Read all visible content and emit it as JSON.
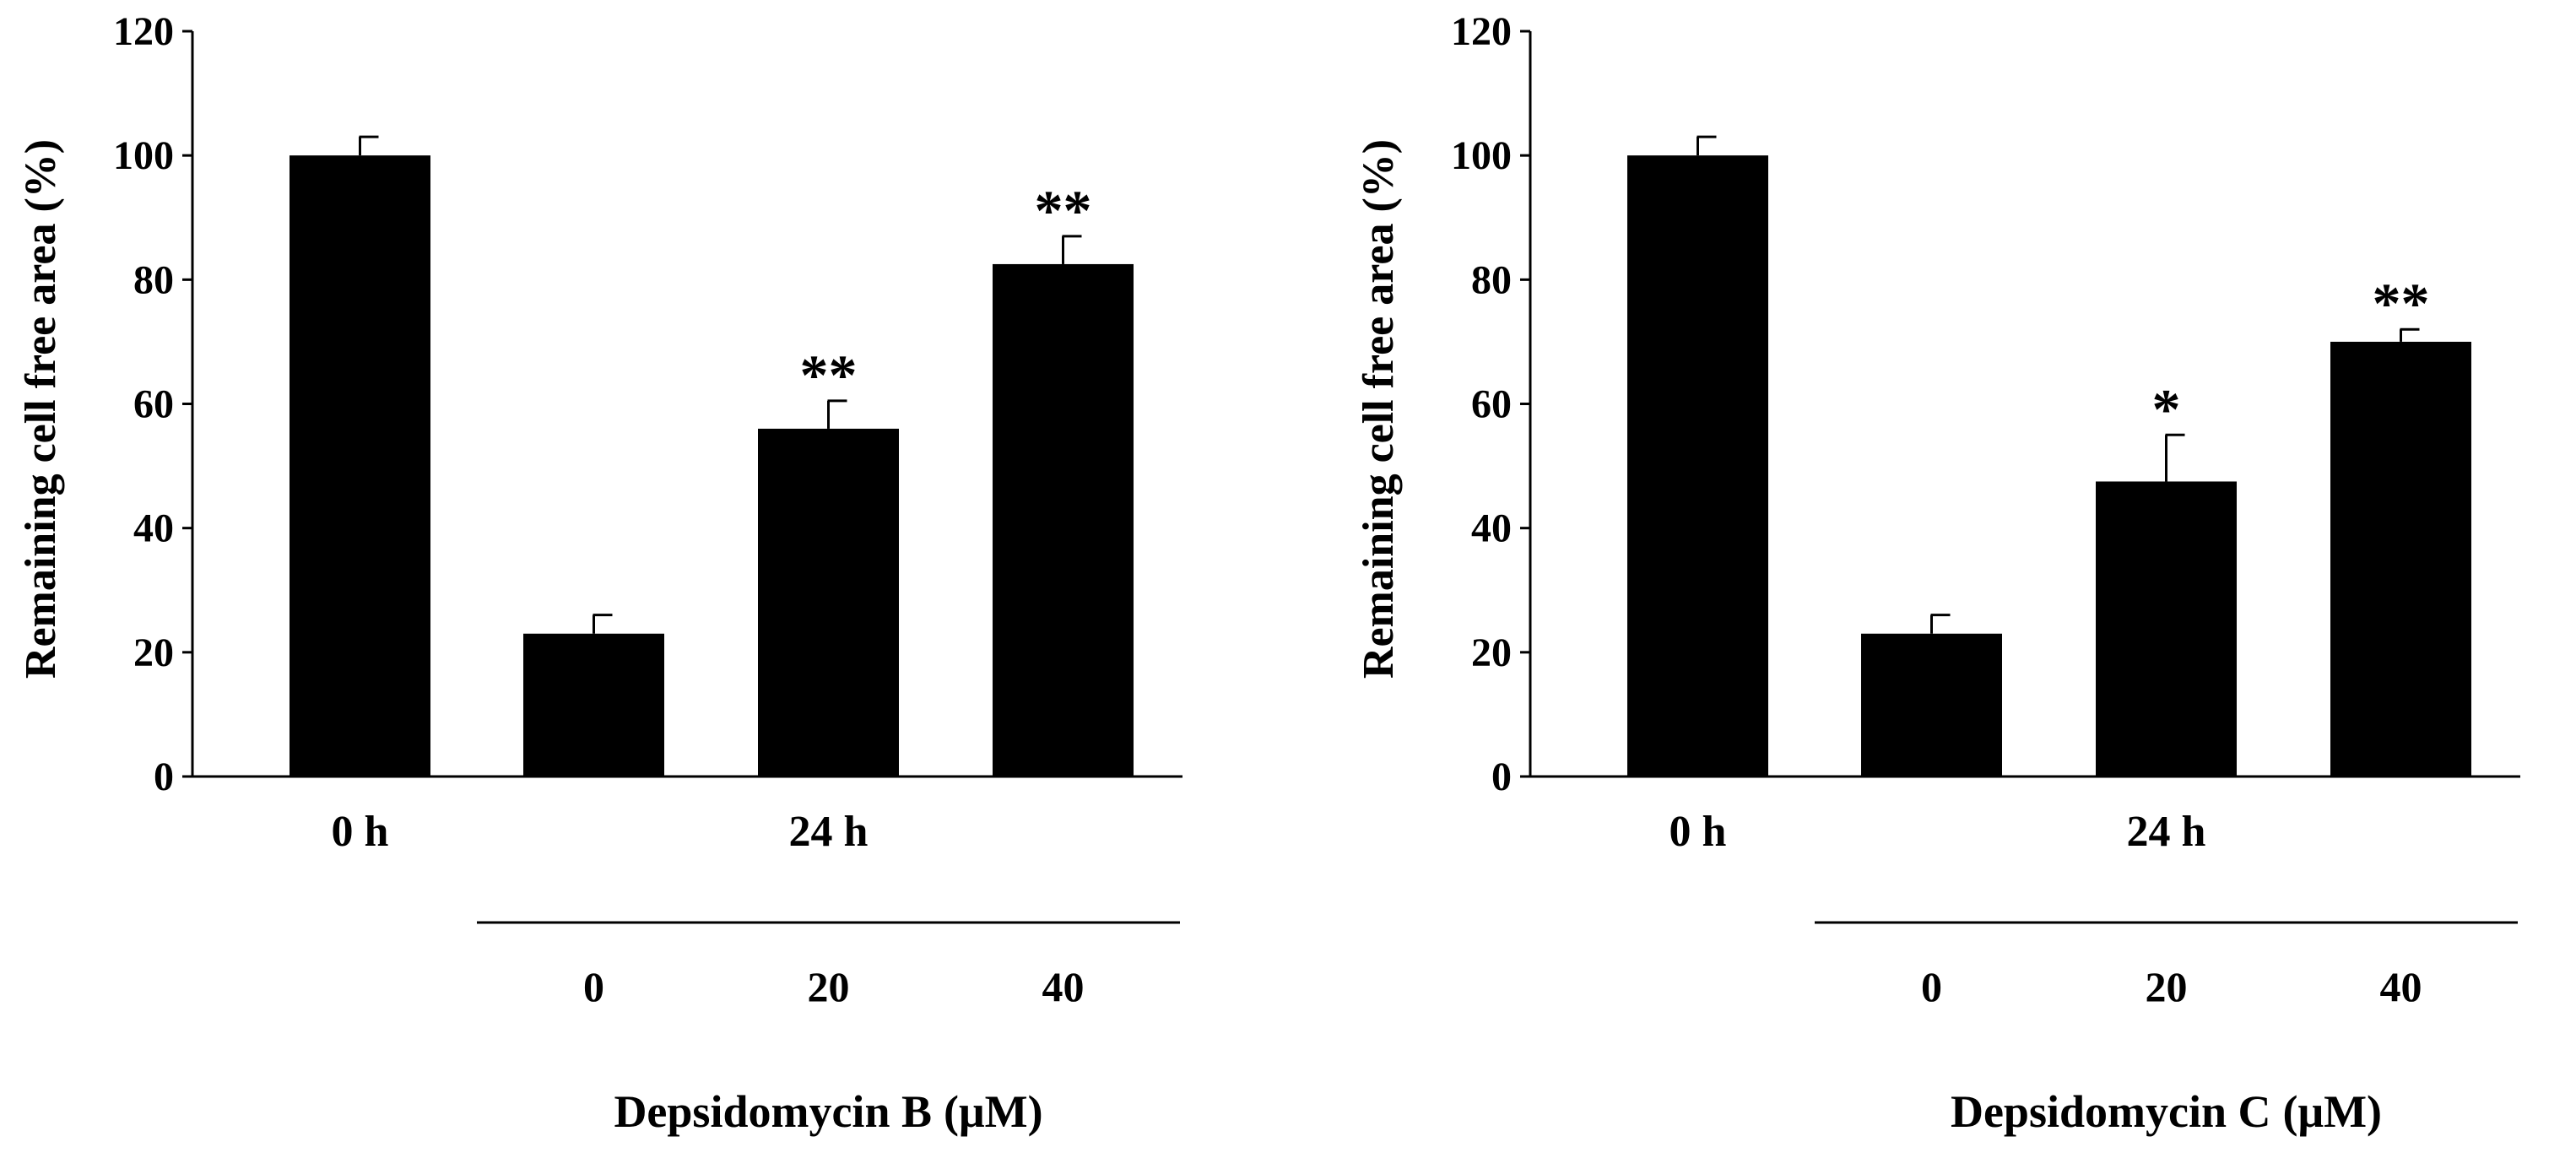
{
  "chart_data": [
    {
      "type": "bar",
      "categories": [
        "0 h",
        "24 h / 0",
        "24 h / 20",
        "24 h / 40"
      ],
      "values": [
        100,
        23,
        56,
        82.5
      ],
      "errors": [
        3,
        3,
        4.5,
        4.5
      ],
      "significance": [
        "",
        "",
        "**",
        "**"
      ],
      "ylabel": "Remaining cell free area (%)",
      "ylim": [
        0,
        120
      ],
      "yticks": [
        0,
        20,
        40,
        60,
        80,
        100,
        120
      ],
      "group_labels": [
        "0 h",
        "24 h"
      ],
      "dose_labels": [
        "0",
        "20",
        "40"
      ],
      "compound_name": "Depsidomycin B",
      "compound_unit": "(μM)",
      "grid": false
    },
    {
      "type": "bar",
      "categories": [
        "0 h",
        "24 h / 0",
        "24 h / 20",
        "24 h / 40"
      ],
      "values": [
        100,
        23,
        47.5,
        70
      ],
      "errors": [
        3,
        3,
        7.5,
        2
      ],
      "significance": [
        "",
        "",
        "*",
        "**"
      ],
      "ylabel": "Remaining cell free area (%)",
      "ylim": [
        0,
        120
      ],
      "yticks": [
        0,
        20,
        40,
        60,
        80,
        100,
        120
      ],
      "group_labels": [
        "0 h",
        "24 h"
      ],
      "dose_labels": [
        "0",
        "20",
        "40"
      ],
      "compound_name": "Depsidomycin C",
      "compound_unit": "(μM)",
      "grid": false
    }
  ]
}
